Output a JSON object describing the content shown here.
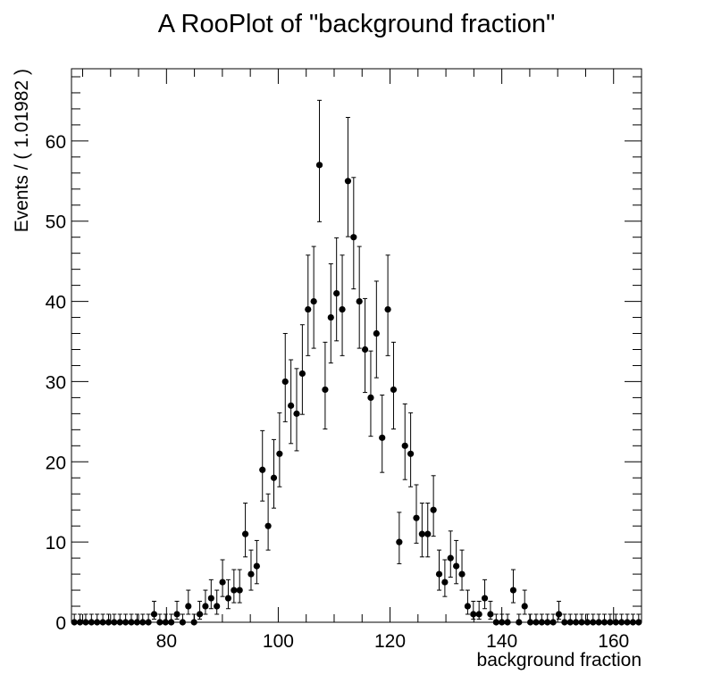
{
  "chart_data": {
    "type": "scatter",
    "title": "A RooPlot of \"background fraction\"",
    "xlabel": "background fraction",
    "ylabel": "Events / ( 1.01982 )",
    "xlim": [
      63.0,
      165.0
    ],
    "ylim": [
      0,
      69
    ],
    "x_ticks": [
      80,
      100,
      120,
      140,
      160
    ],
    "x_tick_labels": [
      "80",
      "100",
      "120",
      "140",
      "160"
    ],
    "y_ticks": [
      0,
      10,
      20,
      30,
      40,
      50,
      60
    ],
    "y_tick_labels": [
      "0",
      "10",
      "20",
      "30",
      "40",
      "50",
      "60"
    ],
    "bin_width": 1.01982,
    "grid": false,
    "legend": "none",
    "marker_color": "#000000",
    "series": [
      {
        "x": [
          63.51,
          64.53,
          65.55,
          66.57,
          67.59,
          68.61,
          69.63,
          70.65,
          71.67,
          72.69,
          73.71,
          74.73,
          75.75,
          76.77,
          77.79,
          78.81,
          79.83,
          80.85,
          81.87,
          82.89,
          83.91,
          84.93,
          85.95,
          86.97,
          87.99,
          89.01,
          90.03,
          91.05,
          92.07,
          93.09,
          94.11,
          95.13,
          96.15,
          97.17,
          98.19,
          99.21,
          100.23,
          101.25,
          102.27,
          103.29,
          104.31,
          105.33,
          106.35,
          107.37,
          108.39,
          109.41,
          110.43,
          111.45,
          112.47,
          113.49,
          114.51,
          115.53,
          116.55,
          117.57,
          118.59,
          119.61,
          120.63,
          121.65,
          122.67,
          123.69,
          124.71,
          125.73,
          126.75,
          127.77,
          128.79,
          129.81,
          130.83,
          131.85,
          132.87,
          133.89,
          134.91,
          135.93,
          136.95,
          137.97,
          138.99,
          140.01,
          141.03,
          142.05,
          143.07,
          144.09,
          145.11,
          146.13,
          147.15,
          148.17,
          149.19,
          150.21,
          151.23,
          152.25,
          153.27,
          154.29,
          155.31,
          156.33,
          157.35,
          158.37,
          159.39,
          160.41,
          161.43,
          162.45,
          163.47,
          164.49
        ],
        "y": [
          0,
          0,
          0,
          0,
          0,
          0,
          0,
          0,
          0,
          0,
          0,
          0,
          0,
          0,
          1,
          0,
          0,
          0,
          1,
          0,
          2,
          0,
          1,
          2,
          3,
          2,
          5,
          3,
          4,
          4,
          11,
          6,
          7,
          19,
          12,
          18,
          21,
          30,
          27,
          26,
          31,
          39,
          40,
          57,
          29,
          38,
          41,
          39,
          55,
          48,
          40,
          34,
          28,
          36,
          23,
          39,
          29,
          10,
          22,
          21,
          13,
          11,
          11,
          14,
          6,
          5,
          8,
          7,
          6,
          2,
          1,
          1,
          3,
          1,
          0,
          0,
          0,
          4,
          0,
          2,
          0,
          0,
          0,
          0,
          0,
          1,
          0,
          0,
          0,
          0,
          0,
          0,
          0,
          0,
          0,
          0,
          0,
          0,
          0,
          0
        ]
      }
    ]
  }
}
